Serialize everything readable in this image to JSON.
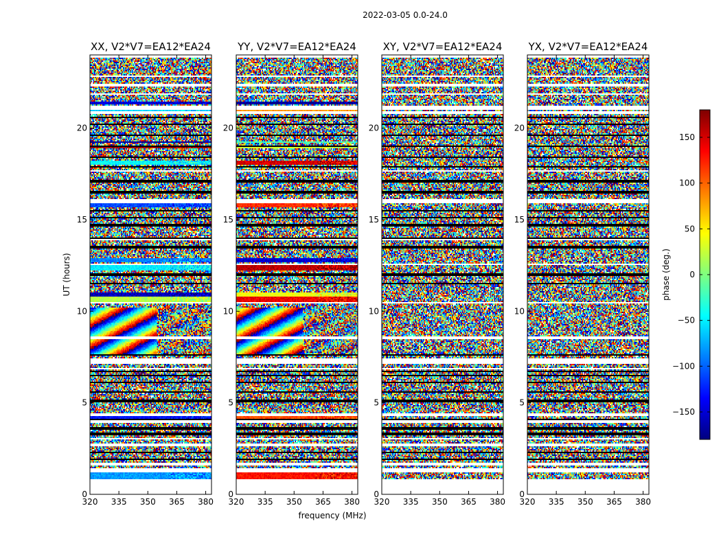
{
  "chart_data": {
    "type": "heatmap",
    "suptitle": "2022-03-05 0.0-24.0",
    "xlabel": "frequency (MHz)",
    "ylabel": "UT (hours)",
    "xlim": [
      320,
      383
    ],
    "ylim": [
      0,
      24
    ],
    "xticks": [
      "320",
      "335",
      "350",
      "365",
      "380"
    ],
    "xtick_values": [
      320,
      335,
      350,
      365,
      380
    ],
    "yticks": [
      "0",
      "5",
      "10",
      "15",
      "20"
    ],
    "ytick_values": [
      0,
      5,
      10,
      15,
      20
    ],
    "colorbar": {
      "label": "phase (deg.)",
      "vmin": -180,
      "vmax": 180,
      "ticks": [
        "150",
        "100",
        "50",
        "0",
        "−50",
        "−100",
        "−150"
      ],
      "tick_values": [
        150,
        100,
        50,
        0,
        -50,
        -100,
        -150
      ],
      "colormap": [
        "#00007f",
        "#0000ff",
        "#007fff",
        "#00ffff",
        "#7fff7f",
        "#ffff00",
        "#ff7f00",
        "#ff0000",
        "#7f0000"
      ]
    },
    "flag_color": "#ffffff",
    "gap_color": "#000000",
    "flagged_hours": [
      [
        0.0,
        0.85
      ],
      [
        1.2,
        1.45
      ],
      [
        1.6,
        1.75
      ],
      [
        2.6,
        2.75
      ],
      [
        3.0,
        3.1
      ],
      [
        3.9,
        4.05
      ],
      [
        4.25,
        4.4
      ],
      [
        6.8,
        6.9
      ],
      [
        7.1,
        7.4
      ],
      [
        8.5,
        8.6
      ],
      [
        10.4,
        10.5
      ],
      [
        12.5,
        12.6
      ],
      [
        13.85,
        13.95
      ],
      [
        15.9,
        16.1
      ],
      [
        17.6,
        17.7
      ],
      [
        20.8,
        20.9
      ],
      [
        21.0,
        21.25
      ],
      [
        21.8,
        21.9
      ],
      [
        22.3,
        22.4
      ],
      [
        22.8,
        22.9
      ],
      [
        23.3,
        23.35
      ],
      [
        23.85,
        24.0
      ]
    ],
    "gap_hours": [
      1.9,
      2.3,
      2.65,
      3.3,
      3.6,
      4.1,
      5.1,
      5.6,
      6.1,
      6.5,
      6.7,
      7.6,
      11.5,
      12.0,
      13.5,
      14.0,
      14.7,
      15.1,
      15.5,
      16.5,
      17.1,
      17.9,
      18.4,
      19.0,
      19.6,
      20.2,
      20.6
    ],
    "series": [
      {
        "name": "XX, V2*V7=EA12*EA24",
        "coherent_bands": [
          {
            "from": 0.85,
            "to": 1.2,
            "phase": -80
          },
          {
            "from": 4.0,
            "to": 4.3,
            "phase": -130
          },
          {
            "from": 7.6,
            "to": 10.2,
            "phase": -60,
            "pattern": "fringe"
          },
          {
            "from": 10.5,
            "to": 10.8,
            "phase": 20
          },
          {
            "from": 10.8,
            "to": 11.0,
            "phase": -160
          },
          {
            "from": 12.2,
            "to": 12.5,
            "phase": -50
          },
          {
            "from": 12.7,
            "to": 12.9,
            "phase": -90
          },
          {
            "from": 15.7,
            "to": 16.0,
            "phase": -110
          },
          {
            "from": 18.0,
            "to": 18.2,
            "phase": -45
          },
          {
            "from": 18.9,
            "to": 19.0,
            "phase": 170
          },
          {
            "from": 19.2,
            "to": 19.3,
            "phase": -170
          },
          {
            "from": 20.9,
            "to": 21.05,
            "phase": -60
          },
          {
            "from": 21.3,
            "to": 21.45,
            "phase": -150
          }
        ]
      },
      {
        "name": "YY, V2*V7=EA12*EA24",
        "coherent_bands": [
          {
            "from": 0.85,
            "to": 1.2,
            "phase": 130
          },
          {
            "from": 4.0,
            "to": 4.3,
            "phase": 110
          },
          {
            "from": 7.6,
            "to": 10.2,
            "phase": 60,
            "pattern": "fringe"
          },
          {
            "from": 10.5,
            "to": 10.8,
            "phase": 140
          },
          {
            "from": 10.8,
            "to": 11.0,
            "phase": 40
          },
          {
            "from": 12.2,
            "to": 12.5,
            "phase": 160
          },
          {
            "from": 12.7,
            "to": 12.9,
            "phase": -150
          },
          {
            "from": 15.7,
            "to": 16.0,
            "phase": 120
          },
          {
            "from": 18.0,
            "to": 18.2,
            "phase": 150
          },
          {
            "from": 18.9,
            "to": 19.0,
            "phase": 30
          },
          {
            "from": 19.2,
            "to": 19.3,
            "phase": -20
          },
          {
            "from": 20.9,
            "to": 21.05,
            "phase": 80
          },
          {
            "from": 21.3,
            "to": 21.45,
            "phase": -170
          }
        ]
      },
      {
        "name": "XY, V2*V7=EA12*EA24",
        "coherent_bands": []
      },
      {
        "name": "YX, V2*V7=EA12*EA24",
        "coherent_bands": []
      }
    ]
  }
}
